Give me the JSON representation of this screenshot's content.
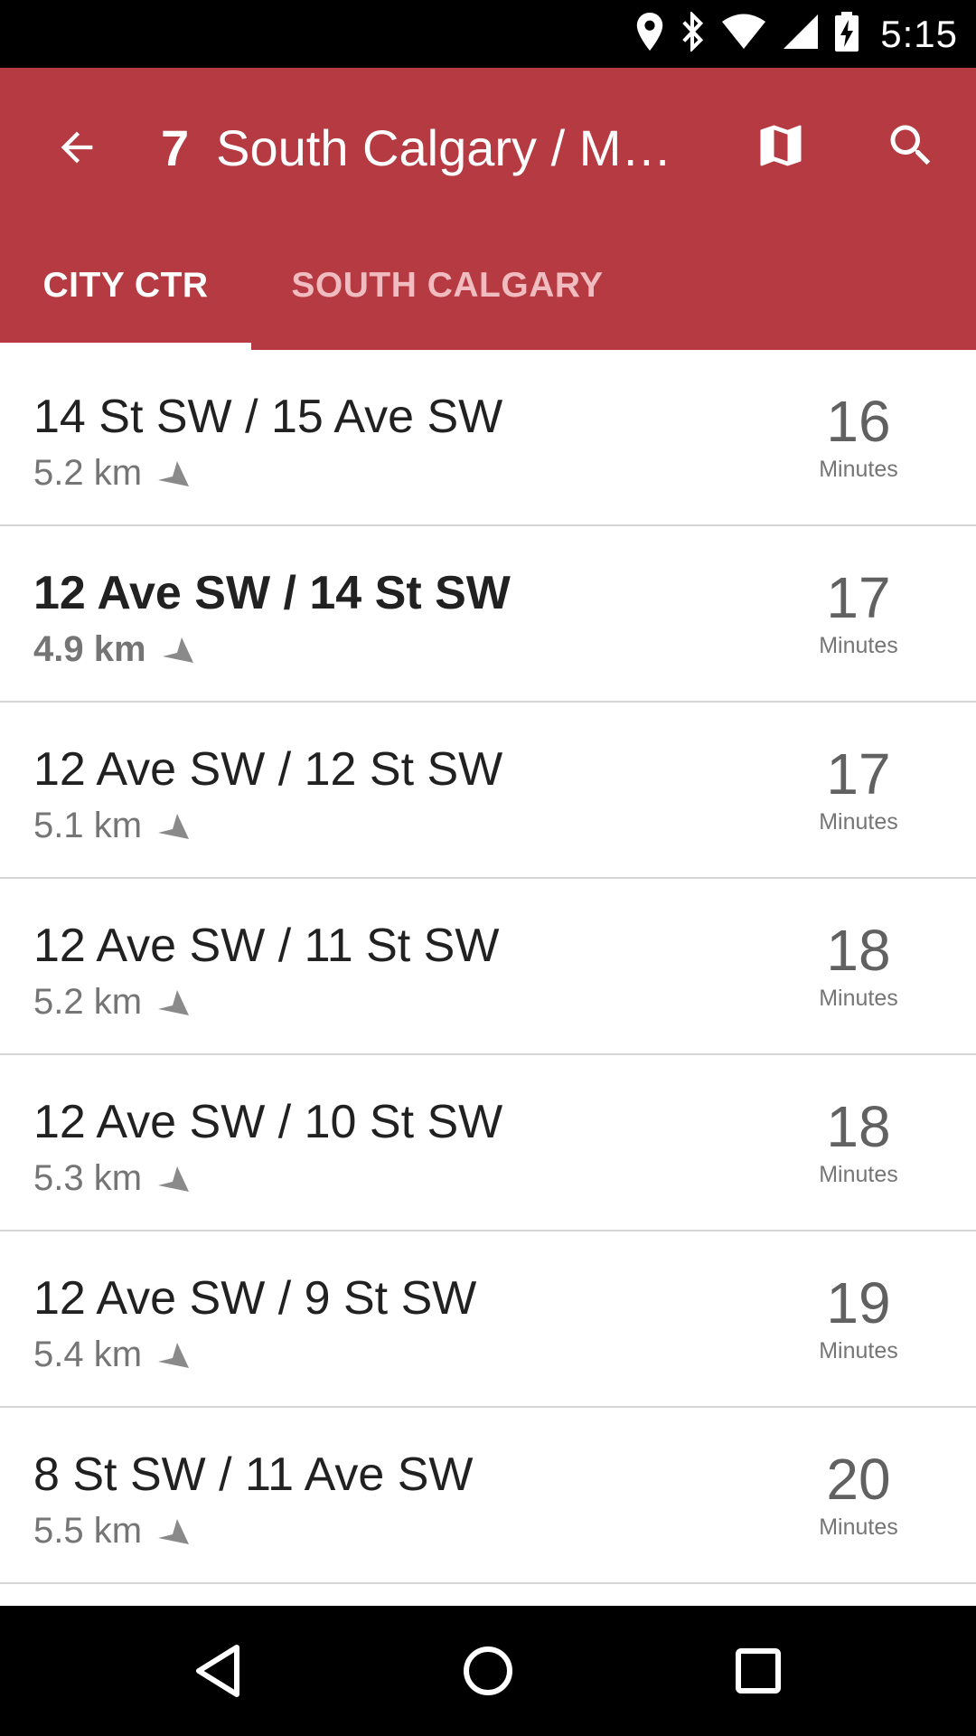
{
  "status_bar": {
    "time": "5:15",
    "icons": [
      "location-icon",
      "bluetooth-icon",
      "wifi-icon",
      "signal-icon",
      "battery-charging-icon"
    ]
  },
  "app_bar": {
    "route_number": "7",
    "route_name": "South Calgary / M…",
    "color": "#b53a41",
    "icons": [
      "back-arrow-icon",
      "map-icon",
      "search-icon"
    ]
  },
  "tabs": [
    {
      "label": "CITY CTR",
      "selected": true
    },
    {
      "label": "SOUTH CALGARY",
      "selected": false
    }
  ],
  "stops": [
    {
      "name": "14 St SW / 15 Ave SW",
      "distance": "5.2 km",
      "eta": "16",
      "eta_unit": "Minutes",
      "highlighted": false
    },
    {
      "name": "12 Ave SW / 14 St SW",
      "distance": "4.9 km",
      "eta": "17",
      "eta_unit": "Minutes",
      "highlighted": true
    },
    {
      "name": "12 Ave SW / 12 St SW",
      "distance": "5.1 km",
      "eta": "17",
      "eta_unit": "Minutes",
      "highlighted": false
    },
    {
      "name": "12 Ave SW / 11 St SW",
      "distance": "5.2 km",
      "eta": "18",
      "eta_unit": "Minutes",
      "highlighted": false
    },
    {
      "name": "12 Ave SW / 10 St SW",
      "distance": "5.3 km",
      "eta": "18",
      "eta_unit": "Minutes",
      "highlighted": false
    },
    {
      "name": "12 Ave SW / 9 St SW",
      "distance": "5.4 km",
      "eta": "19",
      "eta_unit": "Minutes",
      "highlighted": false
    },
    {
      "name": "8 St SW / 11 Ave SW",
      "distance": "5.5 km",
      "eta": "20",
      "eta_unit": "Minutes",
      "highlighted": false
    }
  ],
  "nav_bar": {
    "icons": [
      "back-triangle-icon",
      "home-circle-icon",
      "recents-square-icon"
    ]
  }
}
